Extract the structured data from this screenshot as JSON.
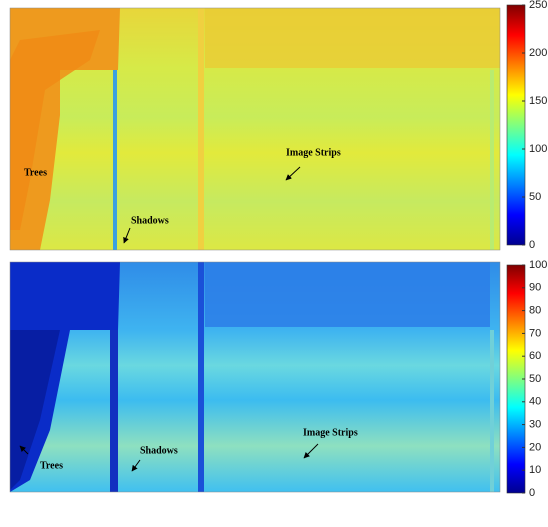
{
  "chart_data": [
    {
      "type": "raster",
      "colormap": "jet",
      "clim": [
        0,
        250
      ],
      "cticks": [
        0,
        50,
        100,
        150,
        200,
        250
      ],
      "annotations": [
        "Trees",
        "Shadows",
        "Image Strips"
      ]
    },
    {
      "type": "raster",
      "colormap": "jet",
      "clim": [
        0,
        100
      ],
      "cticks": [
        0,
        10,
        20,
        30,
        40,
        50,
        60,
        70,
        80,
        90,
        100
      ],
      "annotations": [
        "Image Strips",
        "Shadows",
        "Trees"
      ]
    }
  ]
}
